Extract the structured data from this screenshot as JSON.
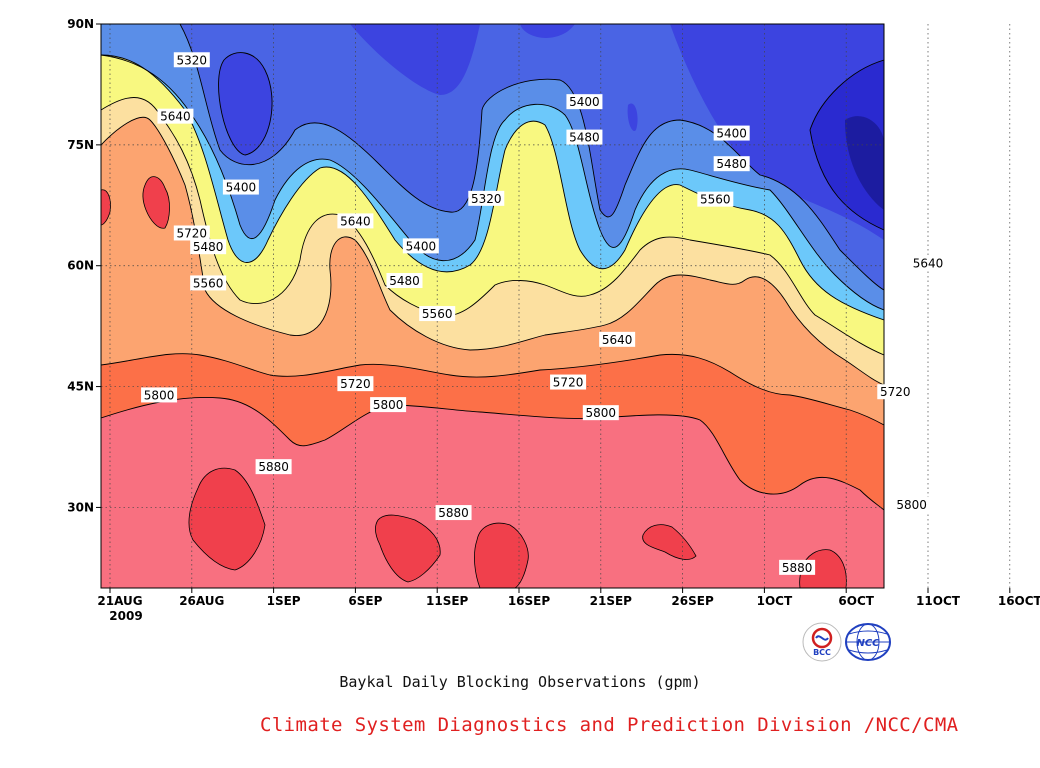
{
  "title": "Baykal Daily Blocking Observations (gpm)",
  "credit": "Climate System Diagnostics and Prediction Division /NCC/CMA",
  "logos": [
    {
      "name": "bcc-logo",
      "text": "BCC",
      "icon": "bcc-emblem-icon"
    },
    {
      "name": "ncc-logo",
      "text": "NCC",
      "icon": "ncc-globe-icon"
    }
  ],
  "chart_data": {
    "type": "contour",
    "xlabel": "",
    "ylabel": "",
    "x_ticks": [
      "21AUG",
      "26AUG",
      "1SEP",
      "6SEP",
      "11SEP",
      "16SEP",
      "21SEP",
      "26SEP",
      "1OCT",
      "6OCT",
      "11OCT",
      "16OCT"
    ],
    "x_year_label": "2009",
    "y_ticks": [
      "30N",
      "45N",
      "60N",
      "75N",
      "90N"
    ],
    "ylim": [
      20,
      90
    ],
    "grid": true,
    "levels": [
      5320,
      5400,
      5480,
      5560,
      5640,
      5720,
      5800,
      5880
    ],
    "fill_colors": [
      "#1c1ca0",
      "#3c44e0",
      "#4a64e4",
      "#5fa0f0",
      "#6cc8fa",
      "#f8f880",
      "#fce0a0",
      "#fca470",
      "#fc7048",
      "#f87080",
      "#f0404c"
    ],
    "contour_labels": [
      {
        "text": "5320",
        "x": "1SEP-5",
        "y": 85.5
      },
      {
        "text": "5320",
        "x": "11SEP+3",
        "y": 68.3
      },
      {
        "text": "5400",
        "x": "21SEP-1",
        "y": 80.3
      },
      {
        "text": "5400",
        "x": "1SEP-2",
        "y": 69.7
      },
      {
        "text": "5400",
        "x": "16SEP-6",
        "y": 62.4
      },
      {
        "text": "5400",
        "x": "1OCT-2",
        "y": 76.4
      },
      {
        "text": "5480",
        "x": "21SEP-1",
        "y": 75.9
      },
      {
        "text": "5480",
        "x": "1SEP-4",
        "y": 62.3
      },
      {
        "text": "5480",
        "x": "16SEP-7",
        "y": 58.1
      },
      {
        "text": "5480",
        "x": "1OCT-2",
        "y": 72.6
      },
      {
        "text": "5560",
        "x": "1SEP-4",
        "y": 57.8
      },
      {
        "text": "5560",
        "x": "16SEP-5",
        "y": 54.0
      },
      {
        "text": "5560",
        "x": "1OCT-3",
        "y": 68.2
      },
      {
        "text": "5640",
        "x": "21AUG+4",
        "y": 78.5
      },
      {
        "text": "5640",
        "x": "6SEP",
        "y": 65.5
      },
      {
        "text": "5640",
        "x": "21SEP+1",
        "y": 50.8
      },
      {
        "text": "5640",
        "x": "6OCT+5",
        "y": 60.3
      },
      {
        "text": "5720",
        "x": "21AUG+5",
        "y": 64.0
      },
      {
        "text": "5720",
        "x": "1SEP+5",
        "y": 45.3
      },
      {
        "text": "5720",
        "x": "21SEP-2",
        "y": 45.5
      },
      {
        "text": "5720",
        "x": "11OCT-2",
        "y": 44.3
      },
      {
        "text": "5800",
        "x": "26AUG-2",
        "y": 43.9
      },
      {
        "text": "5800",
        "x": "11SEP-3",
        "y": 42.7
      },
      {
        "text": "5800",
        "x": "1OCT-10",
        "y": 41.7
      },
      {
        "text": "5800",
        "x": "6OCT+4",
        "y": 30.3
      },
      {
        "text": "5880",
        "x": "26AUG+5",
        "y": 35.0
      },
      {
        "text": "5880",
        "x": "11SEP+1",
        "y": 29.3
      },
      {
        "text": "5880",
        "x": "1OCT+2",
        "y": 22.5
      }
    ]
  }
}
